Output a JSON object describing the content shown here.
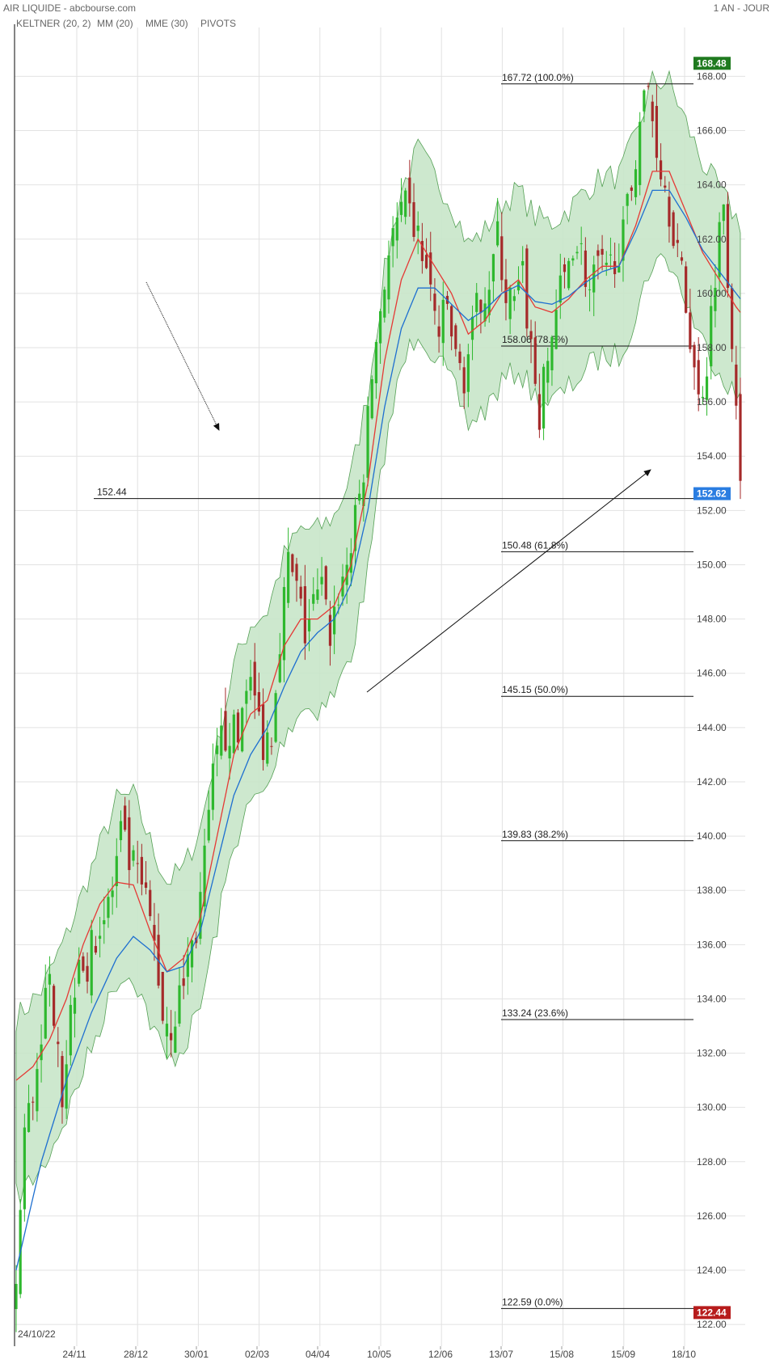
{
  "header": {
    "title": "AIR LIQUIDE - abcbourse.com",
    "period": "1 AN - JOUR",
    "start_date": "24/10/22"
  },
  "legend": [
    {
      "label": "KELTNER (20, 2)",
      "color": "#3a9b3a"
    },
    {
      "label": "MM (20)",
      "color": "#e53935"
    },
    {
      "label": "MME (30)",
      "color": "#1e6fd0"
    },
    {
      "label": "PIVOTS",
      "color": "#555555"
    }
  ],
  "colors": {
    "up": "#2eb82e",
    "down": "#a52a2a",
    "band_fill": "#c8e6c9",
    "band_edge": "#55a055",
    "grid": "#e2e2e2",
    "badge_last": "#2a7de1",
    "badge_high": "#1f7a1f",
    "badge_low": "#b71c1c"
  },
  "chart_data": {
    "type": "candlestick",
    "title": "AIR LIQUIDE",
    "y_ticks": [
      122,
      124,
      126,
      128,
      130,
      132,
      134,
      136,
      138,
      140,
      142,
      144,
      146,
      148,
      150,
      152,
      154,
      156,
      158,
      160,
      162,
      164,
      166,
      168
    ],
    "y_tick_labels": [
      "122.00",
      "124.00",
      "126.00",
      "128.00",
      "130.00",
      "132.00",
      "134.00",
      "136.00",
      "138.00",
      "140.00",
      "142.00",
      "144.00",
      "146.00",
      "148.00",
      "150.00",
      "152.00",
      "154.00",
      "156.00",
      "158.00",
      "160.00",
      "162.00",
      "164.00",
      "166.00",
      "168.00"
    ],
    "ylim": [
      121.2,
      169.8
    ],
    "x_ticks": [
      "24/11",
      "28/12",
      "30/01",
      "02/03",
      "04/04",
      "10/05",
      "12/06",
      "13/07",
      "15/08",
      "15/09",
      "18/10"
    ],
    "high_label": "168.48",
    "low_label": "122.44",
    "last_label": "152.62",
    "last_value": 152.62,
    "high_value": 168.48,
    "low_value": 122.44,
    "horizontal_line": {
      "label": "152.44",
      "value": 152.44
    },
    "fibonacci": [
      {
        "value": 167.72,
        "label": "167.72  (100.0%)"
      },
      {
        "value": 158.06,
        "label": "158.06  (78.6%)"
      },
      {
        "value": 150.48,
        "label": "150.48  (61.8%)"
      },
      {
        "value": 145.15,
        "label": "145.15  (50.0%)"
      },
      {
        "value": 139.83,
        "label": "139.83  (38.2%)"
      },
      {
        "value": 133.24,
        "label": "133.24  (23.6%)"
      },
      {
        "value": 122.59,
        "label": "122.59  (0.0%)"
      }
    ],
    "close_path": [
      [
        0,
        123.5
      ],
      [
        2,
        129
      ],
      [
        4,
        130.5
      ],
      [
        6,
        133
      ],
      [
        8,
        134.5
      ],
      [
        10,
        133
      ],
      [
        11,
        130.5
      ],
      [
        13,
        133.5
      ],
      [
        15,
        136
      ],
      [
        17,
        135
      ],
      [
        19,
        136.5
      ],
      [
        21,
        137
      ],
      [
        23,
        138
      ],
      [
        25,
        140
      ],
      [
        27,
        139
      ],
      [
        29,
        138.5
      ],
      [
        31,
        137.5
      ],
      [
        33,
        136
      ],
      [
        35,
        133.5
      ],
      [
        37,
        133
      ],
      [
        39,
        134
      ],
      [
        41,
        135.5
      ],
      [
        43,
        136.5
      ],
      [
        45,
        139
      ],
      [
        47,
        142
      ],
      [
        49,
        143.5
      ],
      [
        51,
        144
      ],
      [
        53,
        143.5
      ],
      [
        55,
        146
      ],
      [
        57,
        145
      ],
      [
        59,
        143.5
      ],
      [
        61,
        144
      ],
      [
        63,
        147.5
      ],
      [
        65,
        150
      ],
      [
        67,
        149
      ],
      [
        69,
        147.5
      ],
      [
        71,
        148.5
      ],
      [
        73,
        149
      ],
      [
        75,
        147.5
      ],
      [
        77,
        149
      ],
      [
        79,
        150
      ],
      [
        81,
        151.5
      ],
      [
        83,
        153.5
      ],
      [
        85,
        157
      ],
      [
        87,
        159.5
      ],
      [
        89,
        161.5
      ],
      [
        91,
        162.5
      ],
      [
        93,
        163
      ],
      [
        95,
        162.5
      ],
      [
        97,
        161.5
      ],
      [
        99,
        160
      ],
      [
        101,
        158.5
      ],
      [
        103,
        159.5
      ],
      [
        105,
        157.5
      ],
      [
        107,
        157
      ],
      [
        109,
        158.5
      ],
      [
        111,
        160
      ],
      [
        113,
        160.5
      ],
      [
        115,
        162
      ],
      [
        117,
        160
      ],
      [
        119,
        159.5
      ],
      [
        121,
        160.5
      ],
      [
        123,
        158
      ],
      [
        125,
        155.5
      ],
      [
        127,
        157.5
      ],
      [
        129,
        159.5
      ],
      [
        131,
        160.5
      ],
      [
        133,
        162
      ],
      [
        135,
        161.5
      ],
      [
        137,
        160
      ],
      [
        139,
        161
      ],
      [
        141,
        160.5
      ],
      [
        143,
        161.5
      ],
      [
        145,
        162
      ],
      [
        147,
        164
      ],
      [
        149,
        166.5
      ],
      [
        151,
        167.5
      ],
      [
        153,
        165.5
      ],
      [
        155,
        164
      ],
      [
        157,
        162.5
      ],
      [
        159,
        160.5
      ],
      [
        161,
        158.5
      ],
      [
        163,
        156
      ],
      [
        165,
        157.5
      ],
      [
        167,
        161
      ],
      [
        169,
        163.5
      ],
      [
        171,
        158.5
      ],
      [
        172,
        156.5
      ],
      [
        173,
        152.6
      ]
    ],
    "keltner_mid_path": [
      [
        0,
        130
      ],
      [
        6,
        131
      ],
      [
        12,
        133
      ],
      [
        18,
        135.5
      ],
      [
        24,
        138
      ],
      [
        28,
        138.2
      ],
      [
        32,
        136.5
      ],
      [
        36,
        135
      ],
      [
        40,
        135.5
      ],
      [
        44,
        137
      ],
      [
        48,
        140
      ],
      [
        52,
        143
      ],
      [
        56,
        144.5
      ],
      [
        60,
        145
      ],
      [
        64,
        147
      ],
      [
        68,
        148
      ],
      [
        72,
        148
      ],
      [
        76,
        148.5
      ],
      [
        80,
        150
      ],
      [
        84,
        153
      ],
      [
        88,
        157.5
      ],
      [
        92,
        160.5
      ],
      [
        96,
        162
      ],
      [
        100,
        161
      ],
      [
        104,
        160
      ],
      [
        108,
        158.5
      ],
      [
        112,
        159
      ],
      [
        116,
        160
      ],
      [
        120,
        160.5
      ],
      [
        124,
        159.5
      ],
      [
        128,
        159.3
      ],
      [
        132,
        159.8
      ],
      [
        136,
        160.5
      ],
      [
        140,
        161
      ],
      [
        144,
        161
      ],
      [
        148,
        162.5
      ],
      [
        152,
        164.5
      ],
      [
        156,
        164.5
      ],
      [
        160,
        163
      ],
      [
        164,
        161.5
      ],
      [
        168,
        160.5
      ],
      [
        172,
        159.5
      ],
      [
        173,
        159.3
      ]
    ],
    "keltner_half_width": 3.0,
    "mm20_path": [
      [
        0,
        131
      ],
      [
        4,
        131.5
      ],
      [
        8,
        132.5
      ],
      [
        12,
        134
      ],
      [
        16,
        136
      ],
      [
        20,
        137.5
      ],
      [
        24,
        138.3
      ],
      [
        28,
        138.2
      ],
      [
        32,
        136.5
      ],
      [
        36,
        135
      ],
      [
        40,
        135.5
      ],
      [
        44,
        137
      ],
      [
        48,
        140
      ],
      [
        52,
        143
      ],
      [
        56,
        144.5
      ],
      [
        60,
        145
      ],
      [
        64,
        147
      ],
      [
        68,
        148
      ],
      [
        72,
        148
      ],
      [
        76,
        148.5
      ],
      [
        80,
        150
      ],
      [
        84,
        153
      ],
      [
        88,
        157.5
      ],
      [
        92,
        160.5
      ],
      [
        96,
        162
      ],
      [
        100,
        161
      ],
      [
        104,
        160
      ],
      [
        108,
        158.5
      ],
      [
        112,
        159
      ],
      [
        116,
        160
      ],
      [
        120,
        160.5
      ],
      [
        124,
        159.5
      ],
      [
        128,
        159.3
      ],
      [
        132,
        159.8
      ],
      [
        136,
        160.5
      ],
      [
        140,
        161
      ],
      [
        144,
        161
      ],
      [
        148,
        162.5
      ],
      [
        152,
        164.5
      ],
      [
        156,
        164.5
      ],
      [
        160,
        163
      ],
      [
        164,
        161.5
      ],
      [
        168,
        160.5
      ],
      [
        172,
        159.5
      ],
      [
        173,
        159.3
      ]
    ],
    "mme30_path": [
      [
        0,
        124
      ],
      [
        6,
        128
      ],
      [
        12,
        131
      ],
      [
        18,
        133.5
      ],
      [
        24,
        135.5
      ],
      [
        28,
        136.3
      ],
      [
        32,
        135.8
      ],
      [
        36,
        135
      ],
      [
        40,
        135.2
      ],
      [
        44,
        136.5
      ],
      [
        48,
        139
      ],
      [
        52,
        141.5
      ],
      [
        56,
        143
      ],
      [
        60,
        144
      ],
      [
        64,
        145.5
      ],
      [
        68,
        146.8
      ],
      [
        72,
        147.5
      ],
      [
        76,
        148
      ],
      [
        80,
        149.3
      ],
      [
        84,
        152
      ],
      [
        88,
        155.8
      ],
      [
        92,
        158.7
      ],
      [
        96,
        160.2
      ],
      [
        100,
        160.2
      ],
      [
        104,
        159.6
      ],
      [
        108,
        159
      ],
      [
        112,
        159.4
      ],
      [
        116,
        160
      ],
      [
        120,
        160.3
      ],
      [
        124,
        159.7
      ],
      [
        128,
        159.6
      ],
      [
        132,
        159.9
      ],
      [
        136,
        160.4
      ],
      [
        140,
        160.8
      ],
      [
        144,
        161
      ],
      [
        148,
        162.3
      ],
      [
        152,
        163.8
      ],
      [
        156,
        163.8
      ],
      [
        160,
        162.8
      ],
      [
        164,
        161.6
      ],
      [
        168,
        160.8
      ],
      [
        172,
        160
      ],
      [
        173,
        159.8
      ]
    ]
  }
}
